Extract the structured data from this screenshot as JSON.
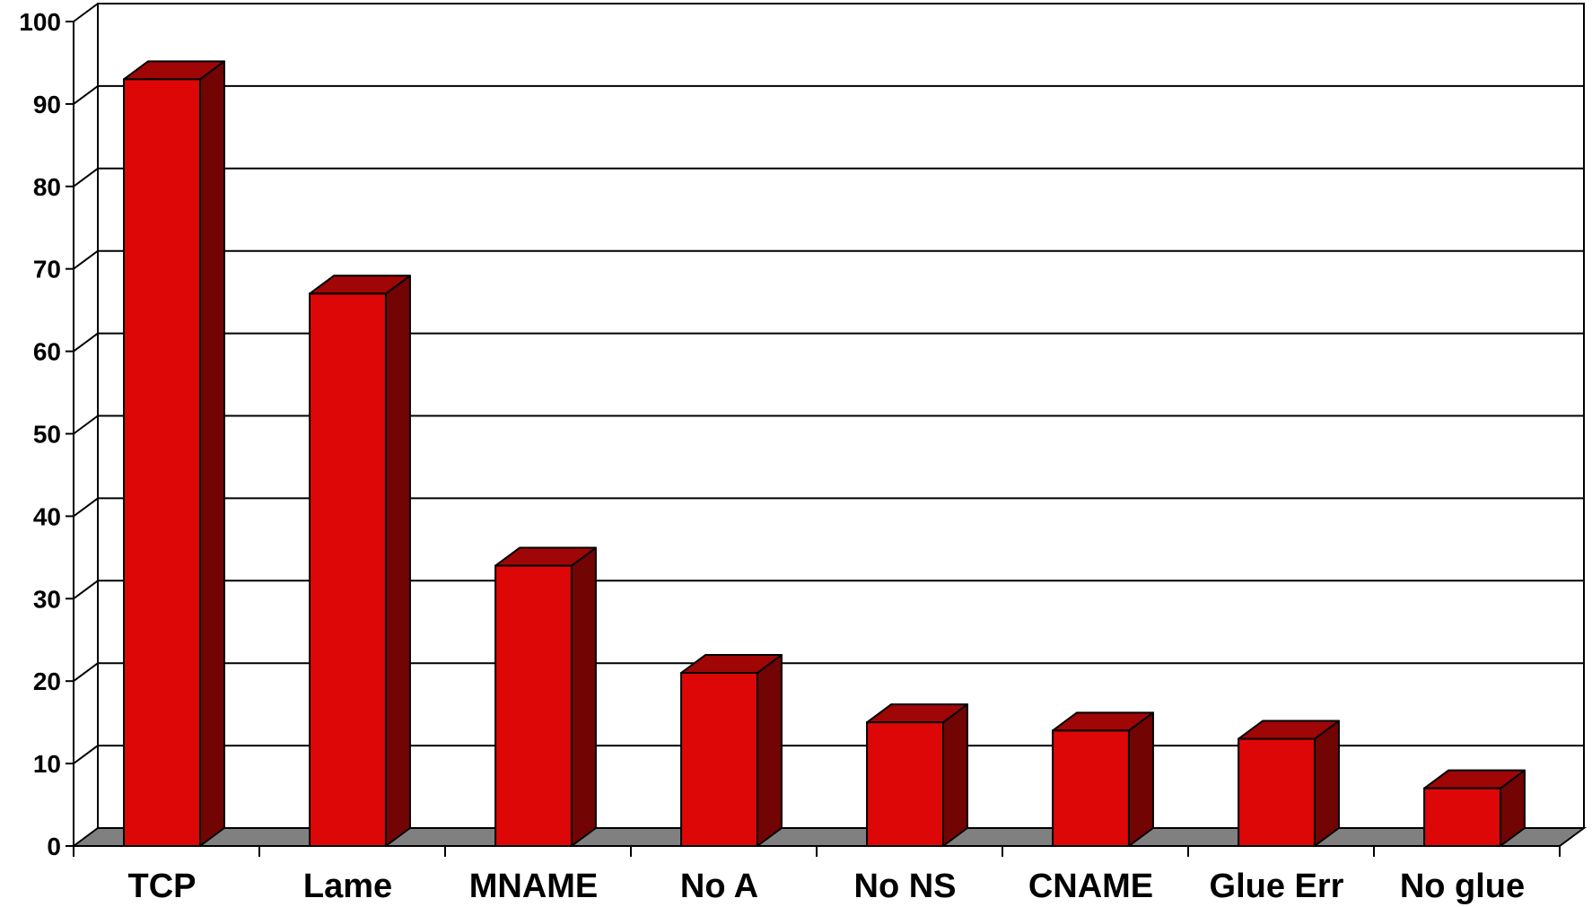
{
  "chart_data": {
    "type": "bar",
    "title": "",
    "xlabel": "",
    "ylabel": "",
    "categories": [
      "TCP",
      "Lame",
      "MNAME",
      "No A",
      "No NS",
      "CNAME",
      "Glue Err",
      "No glue"
    ],
    "values": [
      93,
      67,
      34,
      21,
      15,
      14,
      13,
      7
    ],
    "ylim": [
      0,
      100
    ],
    "yticks": [
      0,
      10,
      20,
      30,
      40,
      50,
      60,
      70,
      80,
      90,
      100
    ],
    "ytick_labels": [
      "0",
      "10",
      "20",
      "30",
      "40",
      "50",
      "60",
      "70",
      "80",
      "90",
      "100"
    ],
    "grid": true,
    "legend": "none",
    "three_d": true,
    "colors": {
      "bar_front": "#dd0707",
      "bar_top": "#a00606",
      "bar_side": "#720404",
      "floor": "#808080",
      "gridline": "#000000",
      "background": "#ffffff"
    }
  }
}
